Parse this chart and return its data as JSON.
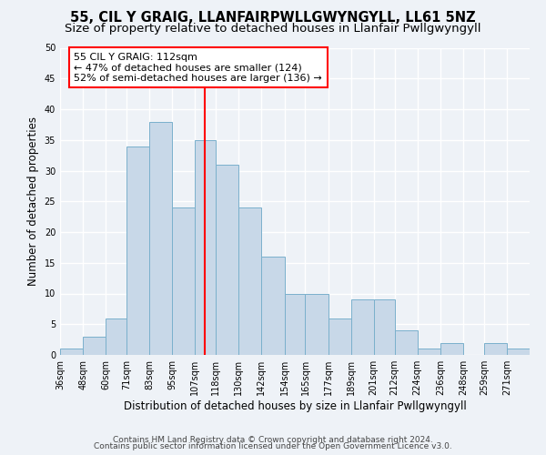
{
  "title": "55, CIL Y GRAIG, LLANFAIRPWLLGWYNGYLL, LL61 5NZ",
  "subtitle": "Size of property relative to detached houses in Llanfair Pwllgwyngyll",
  "xlabel": "Distribution of detached houses by size in Llanfair Pwllgwyngyll",
  "ylabel": "Number of detached properties",
  "bin_labels": [
    "36sqm",
    "48sqm",
    "60sqm",
    "71sqm",
    "83sqm",
    "95sqm",
    "107sqm",
    "118sqm",
    "130sqm",
    "142sqm",
    "154sqm",
    "165sqm",
    "177sqm",
    "189sqm",
    "201sqm",
    "212sqm",
    "224sqm",
    "236sqm",
    "248sqm",
    "259sqm",
    "271sqm"
  ],
  "bin_edges": [
    36,
    48,
    60,
    71,
    83,
    95,
    107,
    118,
    130,
    142,
    154,
    165,
    177,
    189,
    201,
    212,
    224,
    236,
    248,
    259,
    271
  ],
  "bar_heights": [
    1,
    3,
    6,
    34,
    38,
    24,
    35,
    31,
    24,
    16,
    10,
    10,
    6,
    9,
    9,
    4,
    1,
    2,
    0,
    2,
    1
  ],
  "bar_color": "#c8d8e8",
  "bar_edge_color": "#7ab0cc",
  "vline_x": 112,
  "vline_color": "red",
  "annotation_title": "55 CIL Y GRAIG: 112sqm",
  "annotation_line1": "← 47% of detached houses are smaller (124)",
  "annotation_line2": "52% of semi-detached houses are larger (136) →",
  "annotation_box_color": "#ffffff",
  "annotation_box_edge": "red",
  "ylim": [
    0,
    50
  ],
  "yticks": [
    0,
    5,
    10,
    15,
    20,
    25,
    30,
    35,
    40,
    45,
    50
  ],
  "footer1": "Contains HM Land Registry data © Crown copyright and database right 2024.",
  "footer2": "Contains public sector information licensed under the Open Government Licence v3.0.",
  "bg_color": "#eef2f7",
  "grid_color": "#ffffff",
  "title_fontsize": 10.5,
  "subtitle_fontsize": 9.5,
  "axis_label_fontsize": 8.5,
  "tick_fontsize": 7,
  "annotation_fontsize": 8,
  "footer_fontsize": 6.5
}
